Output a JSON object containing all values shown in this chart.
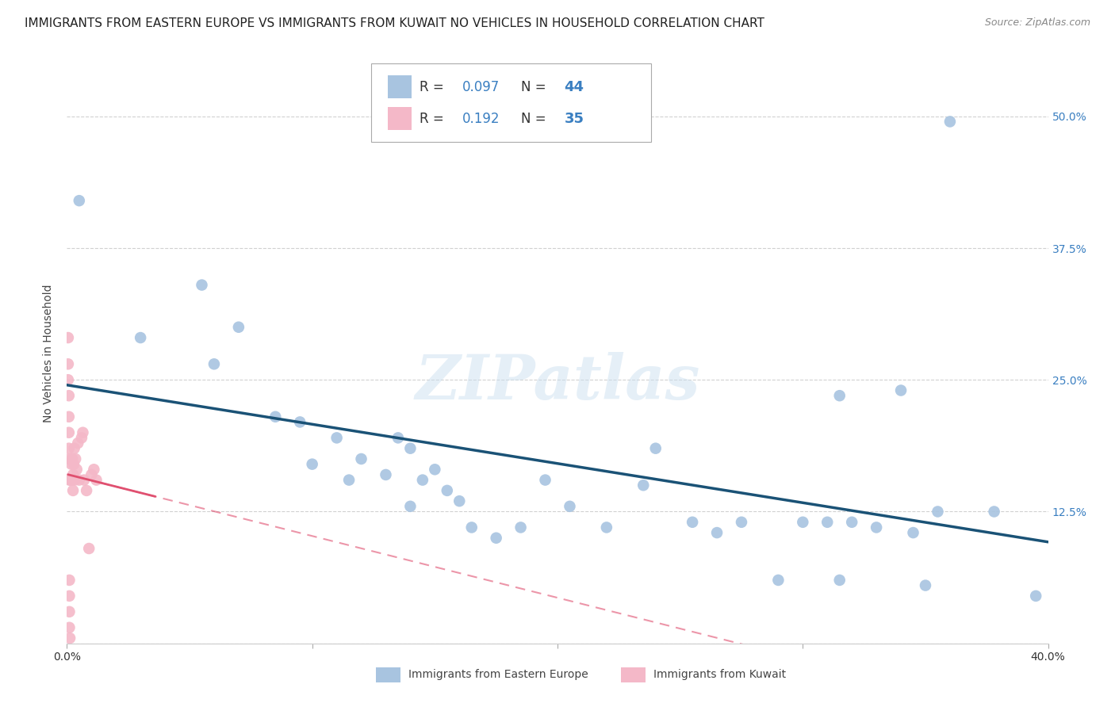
{
  "title": "IMMIGRANTS FROM EASTERN EUROPE VS IMMIGRANTS FROM KUWAIT NO VEHICLES IN HOUSEHOLD CORRELATION CHART",
  "source": "Source: ZipAtlas.com",
  "xlabel_eastern": "Immigrants from Eastern Europe",
  "xlabel_kuwait": "Immigrants from Kuwait",
  "ylabel": "No Vehicles in Household",
  "xlim": [
    0.0,
    0.4
  ],
  "ylim": [
    0.0,
    0.55
  ],
  "R_eastern": 0.097,
  "N_eastern": 44,
  "R_kuwait": 0.192,
  "N_kuwait": 35,
  "eastern_color": "#a8c4e0",
  "kuwait_color": "#f4b8c8",
  "eastern_line_color": "#1a5276",
  "kuwait_line_color": "#e05070",
  "eastern_scatter": [
    [
      0.005,
      0.42
    ],
    [
      0.03,
      0.29
    ],
    [
      0.055,
      0.34
    ],
    [
      0.06,
      0.265
    ],
    [
      0.07,
      0.3
    ],
    [
      0.085,
      0.215
    ],
    [
      0.095,
      0.21
    ],
    [
      0.1,
      0.17
    ],
    [
      0.11,
      0.195
    ],
    [
      0.115,
      0.155
    ],
    [
      0.12,
      0.175
    ],
    [
      0.13,
      0.16
    ],
    [
      0.135,
      0.195
    ],
    [
      0.14,
      0.185
    ],
    [
      0.14,
      0.13
    ],
    [
      0.145,
      0.155
    ],
    [
      0.15,
      0.165
    ],
    [
      0.155,
      0.145
    ],
    [
      0.16,
      0.135
    ],
    [
      0.165,
      0.11
    ],
    [
      0.175,
      0.1
    ],
    [
      0.185,
      0.11
    ],
    [
      0.195,
      0.155
    ],
    [
      0.205,
      0.13
    ],
    [
      0.22,
      0.11
    ],
    [
      0.235,
      0.15
    ],
    [
      0.24,
      0.185
    ],
    [
      0.255,
      0.115
    ],
    [
      0.265,
      0.105
    ],
    [
      0.275,
      0.115
    ],
    [
      0.29,
      0.06
    ],
    [
      0.3,
      0.115
    ],
    [
      0.31,
      0.115
    ],
    [
      0.315,
      0.235
    ],
    [
      0.32,
      0.115
    ],
    [
      0.33,
      0.11
    ],
    [
      0.34,
      0.24
    ],
    [
      0.345,
      0.105
    ],
    [
      0.35,
      0.055
    ],
    [
      0.355,
      0.125
    ],
    [
      0.36,
      0.495
    ],
    [
      0.378,
      0.125
    ],
    [
      0.395,
      0.045
    ],
    [
      0.315,
      0.06
    ]
  ],
  "kuwait_scatter": [
    [
      0.0005,
      0.29
    ],
    [
      0.0005,
      0.265
    ],
    [
      0.0005,
      0.25
    ],
    [
      0.0008,
      0.235
    ],
    [
      0.0008,
      0.215
    ],
    [
      0.0008,
      0.2
    ],
    [
      0.0008,
      0.185
    ],
    [
      0.001,
      0.175
    ],
    [
      0.001,
      0.155
    ],
    [
      0.001,
      0.06
    ],
    [
      0.001,
      0.045
    ],
    [
      0.001,
      0.03
    ],
    [
      0.001,
      0.015
    ],
    [
      0.0012,
      0.005
    ],
    [
      0.0015,
      0.155
    ],
    [
      0.0018,
      0.17
    ],
    [
      0.002,
      0.155
    ],
    [
      0.0022,
      0.175
    ],
    [
      0.0025,
      0.145
    ],
    [
      0.0025,
      0.16
    ],
    [
      0.0028,
      0.17
    ],
    [
      0.003,
      0.185
    ],
    [
      0.0032,
      0.155
    ],
    [
      0.0035,
      0.175
    ],
    [
      0.004,
      0.165
    ],
    [
      0.0045,
      0.19
    ],
    [
      0.005,
      0.155
    ],
    [
      0.006,
      0.195
    ],
    [
      0.0065,
      0.2
    ],
    [
      0.007,
      0.155
    ],
    [
      0.008,
      0.145
    ],
    [
      0.009,
      0.09
    ],
    [
      0.01,
      0.16
    ],
    [
      0.011,
      0.165
    ],
    [
      0.012,
      0.155
    ]
  ],
  "watermark": "ZIPatlas",
  "background_color": "#ffffff",
  "grid_color": "#cccccc",
  "title_fontsize": 11,
  "axis_fontsize": 10
}
